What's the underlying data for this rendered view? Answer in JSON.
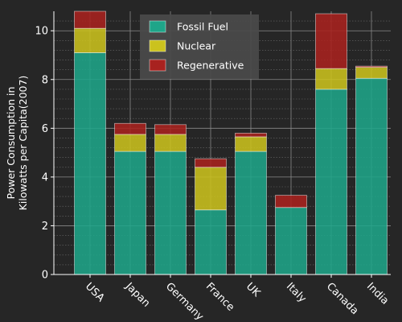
{
  "chart_data": {
    "type": "bar",
    "stacked": true,
    "categories": [
      "USA",
      "Japan",
      "Germany",
      "France",
      "UK",
      "Italy",
      "Canada",
      "India"
    ],
    "series": [
      {
        "name": "Fossil Fuel",
        "color": "#1fa589",
        "values": [
          9.1,
          5.05,
          5.05,
          2.65,
          5.05,
          2.75,
          7.6,
          8.05
        ]
      },
      {
        "name": "Nuclear",
        "color": "#cbc21e",
        "values": [
          1.0,
          0.7,
          0.7,
          1.75,
          0.6,
          0.0,
          0.85,
          0.45
        ]
      },
      {
        "name": "Regenerative",
        "color": "#a8221f",
        "values": [
          0.7,
          0.45,
          0.4,
          0.35,
          0.15,
          0.5,
          2.25,
          0.05
        ]
      }
    ],
    "xlabel": "",
    "ylabel": "Power Consumption in\nKilowatts per Capita(2007)",
    "ylim": [
      0,
      10.8
    ],
    "yticks": [
      0,
      2,
      4,
      6,
      8,
      10
    ],
    "grid": true,
    "legend": "top-center",
    "background": "#262626",
    "text_color": "#ffffff"
  }
}
